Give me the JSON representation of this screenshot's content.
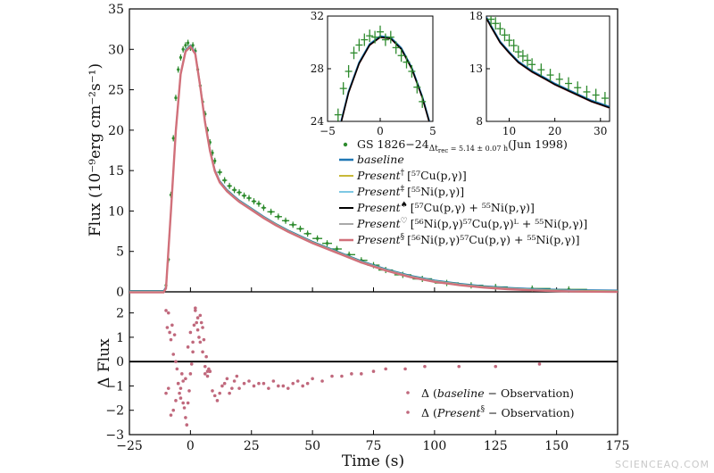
{
  "watermark": "SCIENCEAQ.COM",
  "colors": {
    "observation": "#2e8b2e",
    "baseline": "#1f77b4",
    "present_dagger": "#c8b838",
    "present_ddagger": "#7ec8e3",
    "present_spade": "#000000",
    "present_heart": "#a9a9a9",
    "present_section": "#d1707a",
    "residual": "#c0687c"
  },
  "chart_data": [
    {
      "id": "main",
      "type": "line",
      "ylabel": "Flux (10⁻⁹erg cm⁻²s⁻¹)",
      "xlim": [
        -25,
        175
      ],
      "ylim": [
        0,
        35
      ],
      "xticks": [
        "−25",
        "0",
        "25",
        "50",
        "75",
        "100",
        "125",
        "150",
        "175"
      ],
      "yticks": [
        "0",
        "5",
        "10",
        "15",
        "20",
        "25",
        "30",
        "35"
      ],
      "legend_position": "center-right",
      "legend": [
        {
          "label": "GS 1826−24",
          "sub": "Δt",
          "subsub": "rec",
          "tail": " = 5.14 ± 0.07 h",
          "date": "(Jun 1998)",
          "kind": "point"
        },
        {
          "label": "baseline",
          "kind": "line"
        },
        {
          "label": "Present",
          "sup": "†",
          "reaction": "[⁵⁷Cu(p,γ)]",
          "kind": "line"
        },
        {
          "label": "Present",
          "sup": "‡",
          "reaction": "[⁵⁵Ni(p,γ)]",
          "kind": "line"
        },
        {
          "label": "Present",
          "sup": "♠",
          "reaction": "[⁵⁷Cu(p,γ) + ⁵⁵Ni(p,γ)]",
          "kind": "line"
        },
        {
          "label": "Present",
          "sup": "♡",
          "reaction": "[⁵⁶Ni(p,γ)⁵⁷Cu(p,γ)ᴸ + ⁵⁵Ni(p,γ)]",
          "kind": "line"
        },
        {
          "label": "Present",
          "sup": "§",
          "reaction": "[⁵⁶Ni(p,γ)⁵⁷Cu(p,γ) + ⁵⁵Ni(p,γ)]",
          "kind": "line"
        }
      ],
      "model_curve": {
        "x": [
          -25,
          -11,
          -10,
          -8,
          -6,
          -4,
          -2,
          0,
          2,
          4,
          6,
          8,
          10,
          12,
          15,
          18,
          20,
          25,
          30,
          35,
          40,
          45,
          50,
          60,
          70,
          80,
          90,
          100,
          110,
          120,
          130,
          140,
          150,
          160,
          175
        ],
        "y": [
          0,
          0,
          0.5,
          10,
          20,
          27,
          29.8,
          30.4,
          29.5,
          25.5,
          21,
          17.5,
          15,
          13.6,
          12.5,
          11.7,
          11.2,
          10.2,
          9.2,
          8.3,
          7.5,
          6.8,
          6.1,
          4.9,
          3.7,
          2.7,
          1.9,
          1.3,
          0.9,
          0.6,
          0.4,
          0.25,
          0.15,
          0.1,
          0.05
        ]
      },
      "observation": {
        "x": [
          -10,
          -9,
          -8,
          -7,
          -6,
          -5,
          -4,
          -3,
          -2,
          -1,
          0,
          1,
          2,
          3,
          4,
          5,
          6,
          7,
          8,
          9,
          10,
          12,
          14,
          16,
          18,
          20,
          22,
          24,
          26,
          28,
          30,
          33,
          36,
          39,
          42,
          45,
          48,
          52,
          56,
          60,
          65,
          70,
          75,
          80,
          87,
          95,
          105,
          115,
          125,
          140,
          155
        ],
        "y": [
          0.8,
          4,
          12,
          19,
          24,
          27.5,
          29,
          30,
          30.5,
          30.8,
          30.2,
          30.5,
          29.8,
          27.5,
          25.5,
          23.5,
          22,
          20,
          18.5,
          17.2,
          16.2,
          14.8,
          13.8,
          13.1,
          12.6,
          12.3,
          11.9,
          11.6,
          11.2,
          10.9,
          10.4,
          9.9,
          9.3,
          8.8,
          8.3,
          7.8,
          7.2,
          6.6,
          6.0,
          5.3,
          4.6,
          3.9,
          3.3,
          2.7,
          2.1,
          1.6,
          1.1,
          0.8,
          0.6,
          0.4,
          0.3
        ],
        "xerr": [
          0.5,
          0.5,
          0.5,
          0.5,
          0.5,
          0.5,
          0.5,
          0.5,
          0.5,
          0.5,
          0.5,
          0.5,
          0.5,
          0.5,
          0.5,
          0.5,
          0.5,
          0.5,
          0.5,
          0.5,
          0.5,
          1,
          1,
          1,
          1,
          1,
          1,
          1,
          1,
          1,
          1,
          1.5,
          1.5,
          1.5,
          1.5,
          1.5,
          1.5,
          2,
          2,
          2,
          2.5,
          2.5,
          2.5,
          3,
          3.5,
          4,
          5,
          5,
          5,
          7.5,
          7.5
        ]
      }
    },
    {
      "id": "inset1",
      "type": "line",
      "xlim": [
        -5,
        5
      ],
      "ylim": [
        24,
        32
      ],
      "xticks": [
        "−5",
        "0",
        "5"
      ],
      "yticks": [
        "24",
        "28",
        "32"
      ],
      "model_x": [
        -5,
        -4,
        -3,
        -2,
        -1,
        0,
        1,
        2,
        3,
        4,
        5
      ],
      "model_y": [
        19.5,
        23,
        26.2,
        28.4,
        29.8,
        30.4,
        30.3,
        29.5,
        28,
        25.8,
        23
      ],
      "obs_x": [
        -4,
        -3.5,
        -3,
        -2.5,
        -2,
        -1.5,
        -1,
        -0.5,
        0,
        0.5,
        1,
        1.5,
        2,
        2.5,
        3,
        3.5,
        4
      ],
      "obs_y": [
        24.5,
        26.5,
        27.8,
        29.2,
        29.8,
        30.2,
        30.5,
        30.4,
        30.8,
        30.2,
        30.4,
        29.6,
        29,
        28.5,
        27.8,
        26.6,
        25.5
      ]
    },
    {
      "id": "inset2",
      "type": "line",
      "xlim": [
        5,
        32
      ],
      "ylim": [
        8,
        18
      ],
      "xticks": [
        "10",
        "20",
        "30"
      ],
      "yticks": [
        "8",
        "13",
        "18"
      ],
      "model_x": [
        5,
        6,
        8,
        10,
        12,
        15,
        18,
        20,
        22,
        25,
        28,
        30,
        32
      ],
      "model_y": [
        17.8,
        17,
        15.5,
        14.5,
        13.6,
        12.7,
        12.0,
        11.5,
        11.1,
        10.5,
        9.9,
        9.6,
        9.3
      ],
      "obs_x": [
        6,
        7,
        8,
        9,
        10,
        11,
        12,
        13,
        14,
        15,
        17,
        19,
        21,
        23,
        25,
        27,
        29,
        31
      ],
      "obs_y": [
        17.7,
        17.3,
        16.8,
        16.2,
        15.7,
        15.2,
        14.6,
        14.2,
        13.8,
        13.4,
        12.9,
        12.4,
        12,
        11.6,
        11.2,
        10.8,
        10.5,
        10.2
      ]
    },
    {
      "id": "residual",
      "type": "scatter",
      "xlabel": "Time (s)",
      "ylabel": "Δ Flux",
      "xlim": [
        -25,
        175
      ],
      "ylim": [
        -3,
        2.5
      ],
      "xticks": [
        "−25",
        "0",
        "25",
        "50",
        "75",
        "100",
        "125",
        "150",
        "175"
      ],
      "yticks": [
        "−3",
        "−2",
        "−1",
        "0",
        "1",
        "2"
      ],
      "legend_position": "lower-right",
      "legend": [
        {
          "label": "Δ (",
          "italic": "baseline",
          "tail": " − Observation)"
        },
        {
          "label": "Δ (",
          "italic": "Present",
          "sup": "§",
          "tail": " − Observation)"
        }
      ],
      "points": {
        "x": [
          -10,
          -9.5,
          -9,
          -8.5,
          -8,
          -7.5,
          -7,
          -6.5,
          -6,
          -5.5,
          -5,
          -4.5,
          -4,
          -3.5,
          -3,
          -2.5,
          -2,
          -1.5,
          -1,
          -0.5,
          0,
          0.5,
          1,
          1.5,
          2,
          2.5,
          3,
          3.5,
          4,
          4.5,
          5,
          5.5,
          6,
          6.5,
          7,
          7.5,
          8,
          -10,
          -9,
          -8,
          -7,
          -6,
          -5,
          -4,
          -3,
          -2,
          -1,
          0,
          1,
          2,
          3,
          4,
          5,
          6,
          7,
          8,
          9,
          10,
          11,
          12,
          13,
          14,
          15,
          16,
          17,
          18,
          19,
          20,
          22,
          24,
          26,
          28,
          30,
          32,
          34,
          36,
          38,
          40,
          42,
          44,
          46,
          48,
          50,
          54,
          58,
          62,
          66,
          70,
          75,
          80,
          88,
          96,
          110,
          125,
          143
        ],
        "y": [
          2.1,
          1.4,
          2.0,
          1.2,
          0.9,
          1.5,
          0.3,
          1.1,
          0.0,
          -0.3,
          -0.9,
          -1.3,
          -1.5,
          -0.5,
          -0.8,
          -1.9,
          -2.3,
          -2.6,
          -1.7,
          -1.2,
          -0.5,
          -0.1,
          0.8,
          1.5,
          2.1,
          1.6,
          1.3,
          1.0,
          1.9,
          1.6,
          0.4,
          0.9,
          -0.2,
          0.2,
          -0.6,
          -0.3,
          -0.4,
          -1.3,
          -1.1,
          -2.2,
          -2.0,
          -1.6,
          -0.9,
          -1.1,
          -1.7,
          -0.7,
          0.6,
          1.2,
          0.4,
          2.2,
          1.8,
          0.8,
          1.4,
          -0.5,
          -0.4,
          -0.4,
          -1.2,
          -1.4,
          -1.6,
          -1.3,
          -1.0,
          -0.9,
          -0.7,
          -1.3,
          -1.1,
          -0.8,
          -0.6,
          -1.1,
          -0.9,
          -0.8,
          -1.0,
          -0.9,
          -0.9,
          -1.1,
          -0.8,
          -1.0,
          -1.0,
          -1.1,
          -0.9,
          -0.8,
          -1.0,
          -0.9,
          -0.7,
          -0.8,
          -0.6,
          -0.6,
          -0.5,
          -0.5,
          -0.4,
          -0.3,
          -0.3,
          -0.2,
          -0.2,
          -0.2,
          -0.1
        ]
      }
    }
  ]
}
